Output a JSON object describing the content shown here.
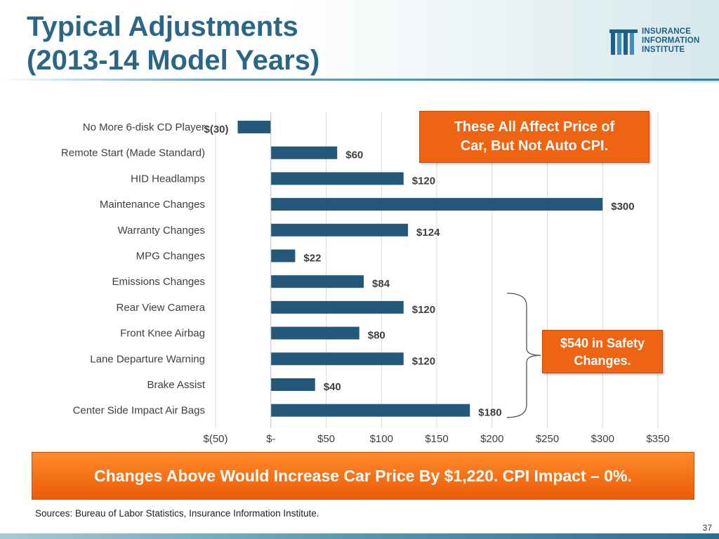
{
  "header": {
    "title_line1": "Typical Adjustments",
    "title_line2": "(2013-14 Model Years)",
    "logo_line1": "INSURANCE",
    "logo_line2": "INFORMATION",
    "logo_line3": "INSTITUTE"
  },
  "callouts": {
    "top_line1": "These All Affect Price of",
    "top_line2": "Car, But Not Auto CPI.",
    "safety_line1": "$540 in Safety",
    "safety_line2": "Changes."
  },
  "banner": "Changes Above Would Increase Car Price By $1,220. CPI Impact – 0%.",
  "sources": "Sources: Bureau of Labor Statistics, Insurance Information Institute.",
  "page_number": "37",
  "colors": {
    "title": "#2a6786",
    "bar": "#24587a",
    "accent": "#ee6412",
    "gridline": "#d9d9d9"
  },
  "chart_data": {
    "type": "bar",
    "orientation": "horizontal",
    "categories": [
      "No More 6-disk CD Player",
      "Remote Start (Made Standard)",
      "HID Headlamps",
      "Maintenance Changes",
      "Warranty Changes",
      "MPG Changes",
      "Emissions Changes",
      "Rear View Camera",
      "Front Knee Airbag",
      "Lane Departure Warning",
      "Brake Assist",
      "Center Side Impact Air Bags"
    ],
    "values": [
      -30,
      60,
      120,
      300,
      124,
      22,
      84,
      120,
      80,
      120,
      40,
      180
    ],
    "data_labels": [
      "$(30)",
      "$60",
      "$120",
      "$300",
      "$124",
      "$22",
      "$84",
      "$120",
      "$80",
      "$120",
      "$40",
      "$180"
    ],
    "xlim": [
      -50,
      350
    ],
    "xticks": [
      -50,
      0,
      50,
      100,
      150,
      200,
      250,
      300,
      350
    ],
    "xtick_labels": [
      "$(50)",
      "$-",
      "$50",
      "$100",
      "$150",
      "$200",
      "$250",
      "$300",
      "$350"
    ],
    "grid": true,
    "safety_bracket": {
      "from_category": "Rear View Camera",
      "to_category": "Center Side Impact Air Bags"
    }
  }
}
